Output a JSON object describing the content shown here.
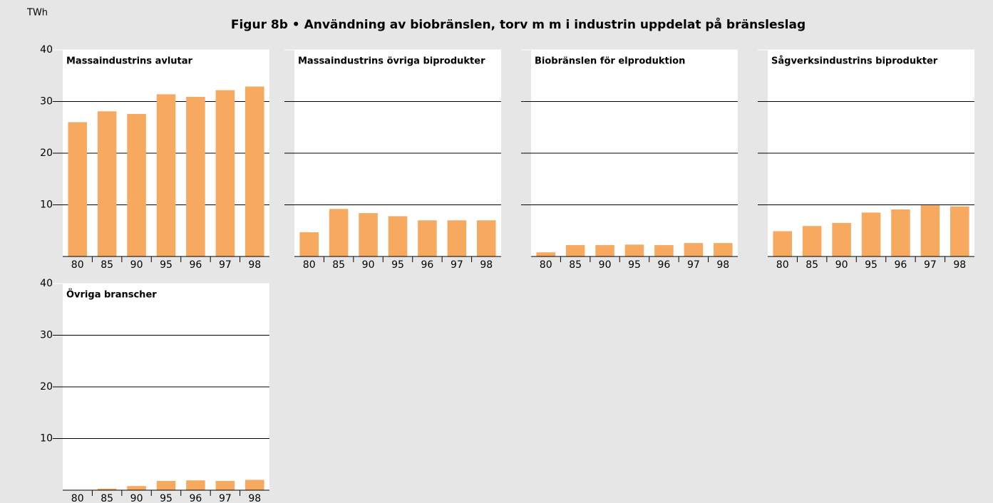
{
  "figure": {
    "title": "Figur 8b • Användning av biobränslen, torv m m i industrin uppdelat på bränsleslag",
    "y_unit": "TWh"
  },
  "chart_data": [
    {
      "type": "bar",
      "title": "Massaindustrins avlutar",
      "categories": [
        "80",
        "85",
        "90",
        "95",
        "96",
        "97",
        "98"
      ],
      "values": [
        26,
        28.1,
        27.6,
        31.4,
        30.9,
        32.2,
        32.9
      ],
      "color": "#f6a95f",
      "ylim": [
        0,
        40
      ],
      "yticks": [
        10,
        20,
        30,
        40
      ],
      "grid": true
    },
    {
      "type": "bar",
      "title": "Massaindustrins övriga biprodukter",
      "categories": [
        "80",
        "85",
        "90",
        "95",
        "96",
        "97",
        "98"
      ],
      "values": [
        4.7,
        9.2,
        8.4,
        7.8,
        7.0,
        7.0,
        7.0
      ],
      "color": "#f6a95f",
      "ylim": [
        0,
        40
      ],
      "yticks": [
        10,
        20,
        30,
        40
      ],
      "grid": true
    },
    {
      "type": "bar",
      "title": "Biobränslen för elproduktion",
      "categories": [
        "80",
        "85",
        "90",
        "95",
        "96",
        "97",
        "98"
      ],
      "values": [
        0.8,
        2.2,
        2.2,
        2.3,
        2.2,
        2.6,
        2.6
      ],
      "color": "#f6a95f",
      "ylim": [
        0,
        40
      ],
      "yticks": [
        10,
        20,
        30,
        40
      ],
      "grid": true
    },
    {
      "type": "bar",
      "title": "Sågverksindustrins biprodukter",
      "categories": [
        "80",
        "85",
        "90",
        "95",
        "96",
        "97",
        "98"
      ],
      "values": [
        4.9,
        5.9,
        6.5,
        8.5,
        9.1,
        9.9,
        9.7
      ],
      "color": "#f6a95f",
      "ylim": [
        0,
        40
      ],
      "yticks": [
        10,
        20,
        30,
        40
      ],
      "grid": true
    },
    {
      "type": "bar",
      "title": "Övriga branscher",
      "categories": [
        "80",
        "85",
        "90",
        "95",
        "96",
        "97",
        "98"
      ],
      "values": [
        0,
        0.3,
        0.8,
        1.8,
        1.9,
        1.8,
        2.0
      ],
      "color": "#f6a95f",
      "ylim": [
        0,
        40
      ],
      "yticks": [
        10,
        20,
        30,
        40
      ],
      "grid": true
    }
  ]
}
